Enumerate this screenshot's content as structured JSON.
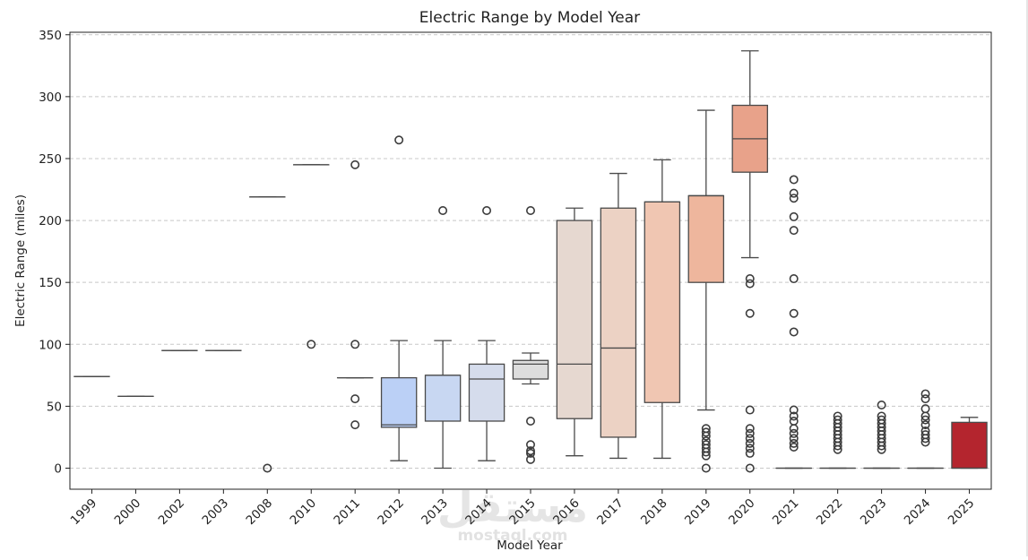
{
  "chart_data": {
    "type": "box",
    "title": "Electric Range by Model Year",
    "xlabel": "Model Year",
    "ylabel": "Electric Range (miles)",
    "ylim": [
      -17,
      352
    ],
    "yticks": [
      0,
      50,
      100,
      150,
      200,
      250,
      300,
      350
    ],
    "grid": "horizontal dashed",
    "categories": [
      "1999",
      "2000",
      "2002",
      "2003",
      "2008",
      "2010",
      "2011",
      "2012",
      "2013",
      "2014",
      "2015",
      "2016",
      "2017",
      "2018",
      "2019",
      "2020",
      "2021",
      "2022",
      "2023",
      "2024",
      "2025"
    ],
    "boxes": [
      {
        "q1": 74,
        "median": 74,
        "q3": 74,
        "whisker_low": 74,
        "whisker_high": 74,
        "outliers": [],
        "color": "#3c4dc0"
      },
      {
        "q1": 58,
        "median": 58,
        "q3": 58,
        "whisker_low": 58,
        "whisker_high": 58,
        "outliers": [],
        "color": "#5571d8"
      },
      {
        "q1": 95,
        "median": 95,
        "q3": 95,
        "whisker_low": 95,
        "whisker_high": 95,
        "outliers": [],
        "color": "#6c8fea"
      },
      {
        "q1": 95,
        "median": 95,
        "q3": 95,
        "whisker_low": 95,
        "whisker_high": 95,
        "outliers": [],
        "color": "#85a8f6"
      },
      {
        "q1": 219,
        "median": 219,
        "q3": 219,
        "whisker_low": 219,
        "whisker_high": 219,
        "outliers": [
          0
        ],
        "color": "#9ebbfd"
      },
      {
        "q1": 245,
        "median": 245,
        "q3": 245,
        "whisker_low": 245,
        "whisker_high": 245,
        "outliers": [
          100
        ],
        "color": "#b4cafd"
      },
      {
        "q1": 73,
        "median": 73,
        "q3": 73,
        "whisker_low": 73,
        "whisker_high": 73,
        "outliers": [
          245,
          100,
          56,
          35
        ],
        "color": "#c5d6f5"
      },
      {
        "q1": 33,
        "median": 35,
        "q3": 73,
        "whisker_low": 6,
        "whisker_high": 103,
        "outliers": [
          265
        ],
        "color": "#bbd0f6"
      },
      {
        "q1": 38,
        "median": 75,
        "q3": 75,
        "whisker_low": 0,
        "whisker_high": 103,
        "outliers": [
          208
        ],
        "color": "#c8d7f2"
      },
      {
        "q1": 38,
        "median": 72,
        "q3": 84,
        "whisker_low": 6,
        "whisker_high": 103,
        "outliers": [
          208
        ],
        "color": "#d5dcec"
      },
      {
        "q1": 72,
        "median": 84,
        "q3": 87,
        "whisker_low": 68,
        "whisker_high": 93,
        "outliers": [
          208,
          38,
          19,
          14,
          12,
          7
        ],
        "color": "#dddddd"
      },
      {
        "q1": 40,
        "median": 84,
        "q3": 200,
        "whisker_low": 10,
        "whisker_high": 210,
        "outliers": [],
        "color": "#e6d8d0"
      },
      {
        "q1": 25,
        "median": 97,
        "q3": 210,
        "whisker_low": 8,
        "whisker_high": 238,
        "outliers": [],
        "color": "#ecd2c4"
      },
      {
        "q1": 53,
        "median": 215,
        "q3": 215,
        "whisker_low": 8,
        "whisker_high": 249,
        "outliers": [],
        "color": "#f0c6b2"
      },
      {
        "q1": 150,
        "median": 220,
        "q3": 220,
        "whisker_low": 47,
        "whisker_high": 289,
        "outliers": [
          32,
          29,
          26,
          22,
          19,
          16,
          13,
          10,
          0
        ],
        "color": "#eeb69d"
      },
      {
        "q1": 239,
        "median": 266,
        "q3": 293,
        "whisker_low": 170,
        "whisker_high": 337,
        "outliers": [
          153,
          149,
          125,
          47,
          32,
          28,
          24,
          20,
          16,
          12,
          0
        ],
        "color": "#e8a28a"
      },
      {
        "q1": 0,
        "median": 0,
        "q3": 0,
        "whisker_low": 0,
        "whisker_high": 0,
        "outliers": [
          233,
          222,
          218,
          203,
          192,
          153,
          125,
          110,
          47,
          42,
          38,
          32,
          28,
          24,
          20,
          17
        ],
        "color": "#e08b73"
      },
      {
        "q1": 0,
        "median": 0,
        "q3": 0,
        "whisker_low": 0,
        "whisker_high": 0,
        "outliers": [
          42,
          39,
          36,
          33,
          30,
          27,
          24,
          21,
          18,
          15
        ],
        "color": "#d6715c"
      },
      {
        "q1": 0,
        "median": 0,
        "q3": 0,
        "whisker_low": 0,
        "whisker_high": 0,
        "outliers": [
          51,
          42,
          39,
          36,
          33,
          30,
          27,
          24,
          21,
          18,
          15
        ],
        "color": "#cb5749"
      },
      {
        "q1": 0,
        "median": 0,
        "q3": 0,
        "whisker_low": 0,
        "whisker_high": 0,
        "outliers": [
          60,
          56,
          48,
          42,
          39,
          35,
          30,
          27,
          24,
          21
        ],
        "color": "#bf3e37"
      },
      {
        "q1": 0,
        "median": 0,
        "q3": 37,
        "whisker_low": 0,
        "whisker_high": 41,
        "outliers": [],
        "color": "#b4252e"
      }
    ]
  },
  "watermark": {
    "text": "مستقل",
    "subtext": "mostaql.com"
  }
}
